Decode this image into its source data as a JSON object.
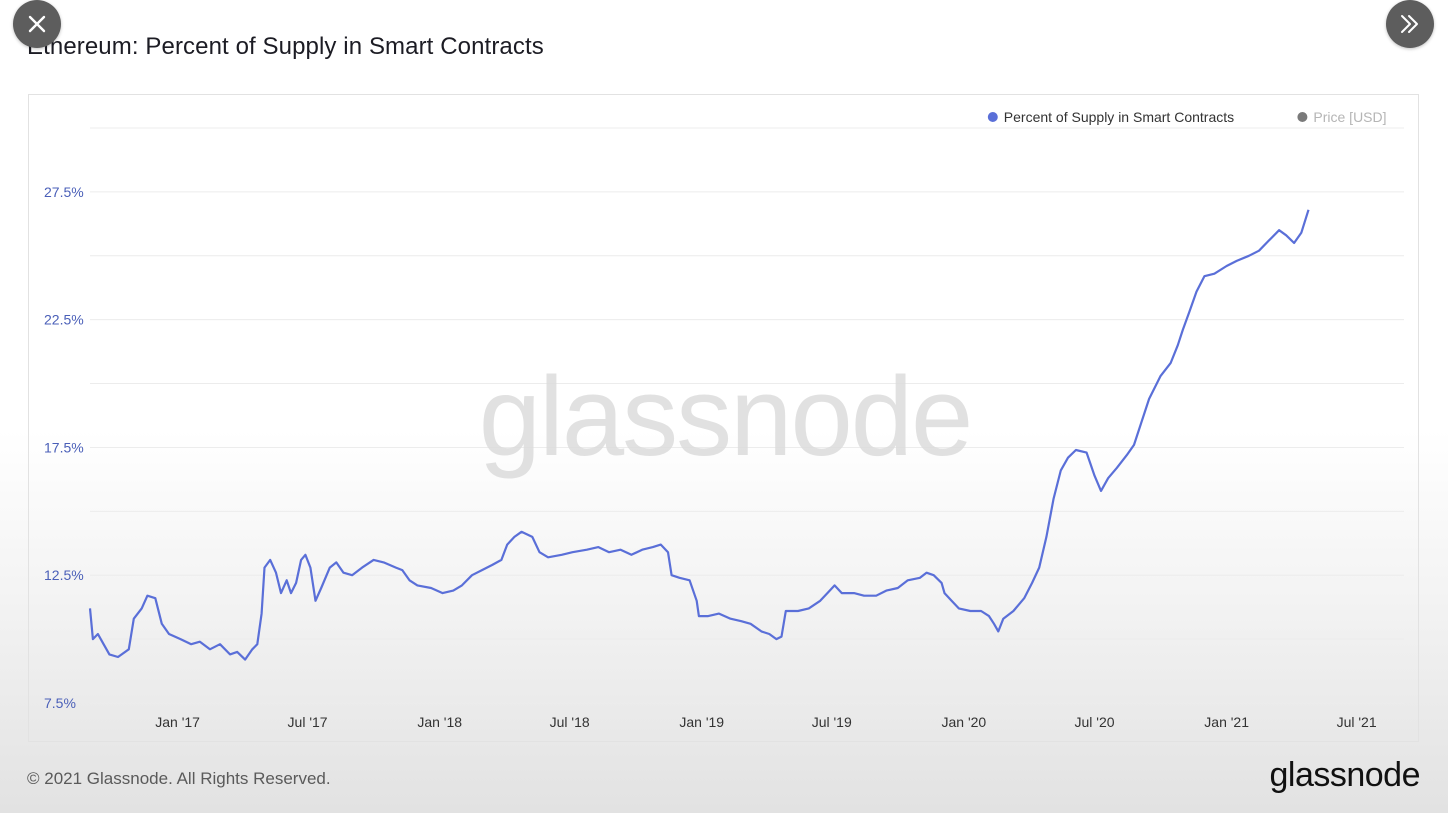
{
  "title": "Ethereum: Percent of Supply in Smart Contracts",
  "controls": {
    "close_icon": "close-icon",
    "next_icon": "double-chevron-right-icon"
  },
  "footer": {
    "copyright": "© 2021 Glassnode. All Rights Reserved.",
    "logo": "glassnode"
  },
  "watermark": "glassnode",
  "colors": {
    "series": "#5a6fd8",
    "price": "#7a7a7a",
    "axis_label": "#4a5fb8",
    "grid": "#ececec"
  },
  "chart_data": {
    "type": "line",
    "title": "Ethereum: Percent of Supply in Smart Contracts",
    "legend": [
      {
        "name": "Percent of Supply in Smart Contracts",
        "color": "#5a6fd8",
        "active": true
      },
      {
        "name": "Price [USD]",
        "color": "#7a7a7a",
        "active": false
      }
    ],
    "legend_placement": "top-right",
    "grid": true,
    "x_ticks": [
      "Jan '17",
      "Jul '17",
      "Jan '18",
      "Jul '18",
      "Jan '19",
      "Jul '19",
      "Jan '20",
      "Jul '20",
      "Jan '21",
      "Jul '21"
    ],
    "x_tick_dates": [
      "2017-01-01",
      "2017-07-01",
      "2018-01-01",
      "2018-07-01",
      "2019-01-01",
      "2019-07-01",
      "2020-01-01",
      "2020-07-01",
      "2021-01-01",
      "2021-07-01"
    ],
    "xlim": [
      "2016-09-01",
      "2021-09-05"
    ],
    "y_ticks": [
      "7.5%",
      "12.5%",
      "17.5%",
      "22.5%",
      "27.5%"
    ],
    "y_tick_values": [
      7.5,
      12.5,
      17.5,
      22.5,
      27.5
    ],
    "ylim": [
      7.5,
      30.0
    ],
    "series": [
      {
        "name": "Percent of Supply in Smart Contracts",
        "points": [
          [
            "2016-09-01",
            11.2
          ],
          [
            "2016-09-05",
            10.0
          ],
          [
            "2016-09-12",
            10.2
          ],
          [
            "2016-09-20",
            9.8
          ],
          [
            "2016-09-28",
            9.4
          ],
          [
            "2016-10-10",
            9.3
          ],
          [
            "2016-10-25",
            9.6
          ],
          [
            "2016-11-01",
            10.8
          ],
          [
            "2016-11-12",
            11.2
          ],
          [
            "2016-11-20",
            11.7
          ],
          [
            "2016-12-01",
            11.6
          ],
          [
            "2016-12-10",
            10.6
          ],
          [
            "2016-12-20",
            10.2
          ],
          [
            "2017-01-05",
            10.0
          ],
          [
            "2017-01-20",
            9.8
          ],
          [
            "2017-02-01",
            9.9
          ],
          [
            "2017-02-15",
            9.6
          ],
          [
            "2017-03-01",
            9.8
          ],
          [
            "2017-03-15",
            9.4
          ],
          [
            "2017-03-25",
            9.5
          ],
          [
            "2017-04-05",
            9.2
          ],
          [
            "2017-04-15",
            9.6
          ],
          [
            "2017-04-22",
            9.8
          ],
          [
            "2017-04-28",
            11.0
          ],
          [
            "2017-05-02",
            12.8
          ],
          [
            "2017-05-10",
            13.1
          ],
          [
            "2017-05-18",
            12.6
          ],
          [
            "2017-05-25",
            11.8
          ],
          [
            "2017-06-02",
            12.3
          ],
          [
            "2017-06-08",
            11.8
          ],
          [
            "2017-06-15",
            12.2
          ],
          [
            "2017-06-22",
            13.1
          ],
          [
            "2017-06-28",
            13.3
          ],
          [
            "2017-07-05",
            12.8
          ],
          [
            "2017-07-12",
            11.5
          ],
          [
            "2017-07-20",
            12.0
          ],
          [
            "2017-08-01",
            12.8
          ],
          [
            "2017-08-10",
            13.0
          ],
          [
            "2017-08-20",
            12.6
          ],
          [
            "2017-09-01",
            12.5
          ],
          [
            "2017-09-15",
            12.8
          ],
          [
            "2017-10-01",
            13.1
          ],
          [
            "2017-10-15",
            13.0
          ],
          [
            "2017-11-01",
            12.8
          ],
          [
            "2017-11-10",
            12.7
          ],
          [
            "2017-11-20",
            12.3
          ],
          [
            "2017-12-01",
            12.1
          ],
          [
            "2017-12-20",
            12.0
          ],
          [
            "2018-01-05",
            11.8
          ],
          [
            "2018-01-20",
            11.9
          ],
          [
            "2018-02-01",
            12.1
          ],
          [
            "2018-02-15",
            12.5
          ],
          [
            "2018-03-01",
            12.7
          ],
          [
            "2018-03-15",
            12.9
          ],
          [
            "2018-03-28",
            13.1
          ],
          [
            "2018-04-05",
            13.7
          ],
          [
            "2018-04-15",
            14.0
          ],
          [
            "2018-04-25",
            14.2
          ],
          [
            "2018-05-10",
            14.0
          ],
          [
            "2018-05-20",
            13.4
          ],
          [
            "2018-06-01",
            13.2
          ],
          [
            "2018-06-20",
            13.3
          ],
          [
            "2018-07-05",
            13.4
          ],
          [
            "2018-07-25",
            13.5
          ],
          [
            "2018-08-10",
            13.6
          ],
          [
            "2018-08-25",
            13.4
          ],
          [
            "2018-09-10",
            13.5
          ],
          [
            "2018-09-25",
            13.3
          ],
          [
            "2018-10-10",
            13.5
          ],
          [
            "2018-10-25",
            13.6
          ],
          [
            "2018-11-05",
            13.7
          ],
          [
            "2018-11-15",
            13.4
          ],
          [
            "2018-11-20",
            12.5
          ],
          [
            "2018-12-01",
            12.4
          ],
          [
            "2018-12-15",
            12.3
          ],
          [
            "2018-12-25",
            11.5
          ],
          [
            "2018-12-28",
            10.9
          ],
          [
            "2019-01-10",
            10.9
          ],
          [
            "2019-01-25",
            11.0
          ],
          [
            "2019-02-10",
            10.8
          ],
          [
            "2019-02-25",
            10.7
          ],
          [
            "2019-03-10",
            10.6
          ],
          [
            "2019-03-25",
            10.3
          ],
          [
            "2019-04-05",
            10.2
          ],
          [
            "2019-04-15",
            10.0
          ],
          [
            "2019-04-22",
            10.1
          ],
          [
            "2019-04-28",
            11.1
          ],
          [
            "2019-05-15",
            11.1
          ],
          [
            "2019-05-30",
            11.2
          ],
          [
            "2019-06-15",
            11.5
          ],
          [
            "2019-06-25",
            11.8
          ],
          [
            "2019-07-05",
            12.1
          ],
          [
            "2019-07-15",
            11.8
          ],
          [
            "2019-08-01",
            11.8
          ],
          [
            "2019-08-15",
            11.7
          ],
          [
            "2019-09-01",
            11.7
          ],
          [
            "2019-09-15",
            11.9
          ],
          [
            "2019-10-01",
            12.0
          ],
          [
            "2019-10-15",
            12.3
          ],
          [
            "2019-11-01",
            12.4
          ],
          [
            "2019-11-10",
            12.6
          ],
          [
            "2019-11-20",
            12.5
          ],
          [
            "2019-12-01",
            12.2
          ],
          [
            "2019-12-05",
            11.8
          ],
          [
            "2019-12-15",
            11.5
          ],
          [
            "2019-12-25",
            11.2
          ],
          [
            "2020-01-10",
            11.1
          ],
          [
            "2020-01-25",
            11.1
          ],
          [
            "2020-02-05",
            10.9
          ],
          [
            "2020-02-12",
            10.6
          ],
          [
            "2020-02-18",
            10.3
          ],
          [
            "2020-02-25",
            10.8
          ],
          [
            "2020-03-10",
            11.1
          ],
          [
            "2020-03-25",
            11.6
          ],
          [
            "2020-04-05",
            12.2
          ],
          [
            "2020-04-15",
            12.8
          ],
          [
            "2020-04-25",
            14.0
          ],
          [
            "2020-05-05",
            15.5
          ],
          [
            "2020-05-15",
            16.6
          ],
          [
            "2020-05-25",
            17.1
          ],
          [
            "2020-06-05",
            17.4
          ],
          [
            "2020-06-20",
            17.3
          ],
          [
            "2020-07-01",
            16.4
          ],
          [
            "2020-07-10",
            15.8
          ],
          [
            "2020-07-20",
            16.3
          ],
          [
            "2020-08-01",
            16.7
          ],
          [
            "2020-08-15",
            17.2
          ],
          [
            "2020-08-25",
            17.6
          ],
          [
            "2020-09-01",
            18.2
          ],
          [
            "2020-09-15",
            19.4
          ],
          [
            "2020-10-01",
            20.3
          ],
          [
            "2020-10-15",
            20.8
          ],
          [
            "2020-10-25",
            21.5
          ],
          [
            "2020-11-01",
            22.1
          ],
          [
            "2020-11-10",
            22.8
          ],
          [
            "2020-11-20",
            23.6
          ],
          [
            "2020-12-01",
            24.2
          ],
          [
            "2020-12-15",
            24.3
          ],
          [
            "2021-01-01",
            24.6
          ],
          [
            "2021-01-15",
            24.8
          ],
          [
            "2021-02-01",
            25.0
          ],
          [
            "2021-02-15",
            25.2
          ],
          [
            "2021-03-01",
            25.6
          ],
          [
            "2021-03-15",
            26.0
          ],
          [
            "2021-03-25",
            25.8
          ],
          [
            "2021-04-05",
            25.5
          ],
          [
            "2021-04-15",
            25.9
          ],
          [
            "2021-04-25",
            26.8
          ]
        ]
      }
    ]
  }
}
